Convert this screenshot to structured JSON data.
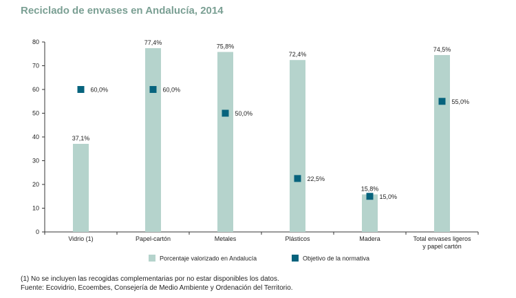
{
  "chart_data": {
    "type": "bar",
    "title": "Reciclado de envases en Andalucía, 2014",
    "categories": [
      "Vidrio (1)",
      "Papel-cartón",
      "Metales",
      "Plásticos",
      "Madera",
      "Total envases ligeros y papel cartón"
    ],
    "series": [
      {
        "name": "Porcentaje valorizado en Andalucía",
        "type": "bar",
        "values": [
          37.1,
          77.4,
          75.8,
          72.4,
          15.8,
          74.5
        ],
        "labels": [
          "37,1%",
          "77,4%",
          "75,8%",
          "72,4%",
          "15,8%",
          "74,5%"
        ]
      },
      {
        "name": "Objetivo de la normativa",
        "type": "scatter",
        "values": [
          60.0,
          60.0,
          50.0,
          22.5,
          15.0,
          55.0
        ],
        "labels": [
          "60,0%",
          "60,0%",
          "50,0%",
          "22,5%",
          "15,0%",
          "55,0%"
        ]
      }
    ],
    "yticks": [
      0,
      10,
      20,
      30,
      40,
      50,
      60,
      70,
      80
    ],
    "ylim": [
      0,
      80
    ],
    "legend_position": "bottom",
    "colors": {
      "bar": "#b5d3cc",
      "marker": "#07637d",
      "title": "#7a9f93"
    }
  },
  "footnotes": {
    "note": "(1) No se incluyen las recogidas complementarias por no estar disponibles los datos.",
    "source": "Fuente: Ecovidrio, Ecoembes, Consejería de Medio Ambiente y Ordenación del Territorio."
  }
}
